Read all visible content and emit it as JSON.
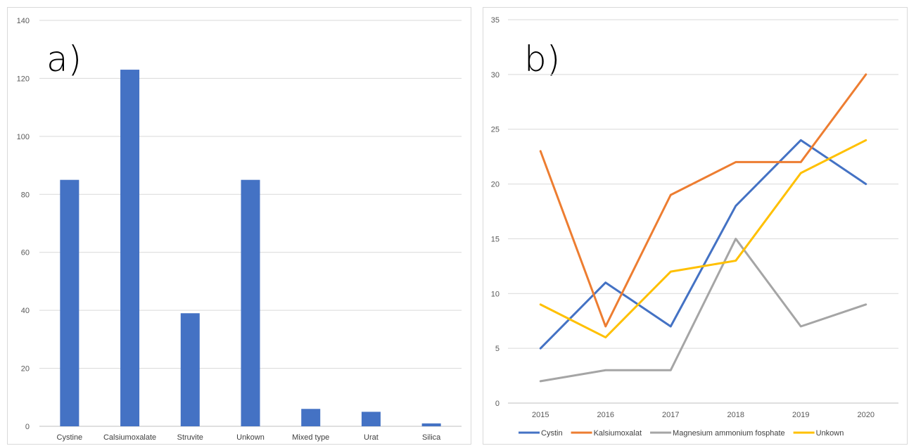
{
  "chart_data": [
    {
      "type": "bar",
      "panel_label": "a)",
      "categories": [
        "Cystine",
        "Calsiumoxalate",
        "Struvite",
        "Unkown",
        "Mixed type",
        "Urat",
        "Silica"
      ],
      "values": [
        85,
        123,
        39,
        85,
        6,
        5,
        1
      ],
      "ylim": [
        0,
        140
      ],
      "yticks": [
        0,
        20,
        40,
        60,
        80,
        100,
        120,
        140
      ],
      "grid": true,
      "color": "#4472C4"
    },
    {
      "type": "line",
      "panel_label": "b)",
      "x": [
        "2015",
        "2016",
        "2017",
        "2018",
        "2019",
        "2020"
      ],
      "series": [
        {
          "name": "Cystin",
          "color": "#4472C4",
          "values": [
            5,
            11,
            7,
            18,
            24,
            20
          ]
        },
        {
          "name": "Kalsiumoxalat",
          "color": "#ED7D31",
          "values": [
            23,
            7,
            19,
            22,
            22,
            30
          ]
        },
        {
          "name": "Magnesium ammonium fosphate",
          "color": "#A5A5A5",
          "values": [
            2,
            3,
            3,
            15,
            7,
            9
          ]
        },
        {
          "name": "Unkown",
          "color": "#FFC000",
          "values": [
            9,
            6,
            12,
            13,
            21,
            24
          ]
        }
      ],
      "ylim": [
        0,
        35
      ],
      "yticks": [
        0,
        5,
        10,
        15,
        20,
        25,
        30,
        35
      ],
      "grid": true,
      "legend": "bottom"
    }
  ]
}
